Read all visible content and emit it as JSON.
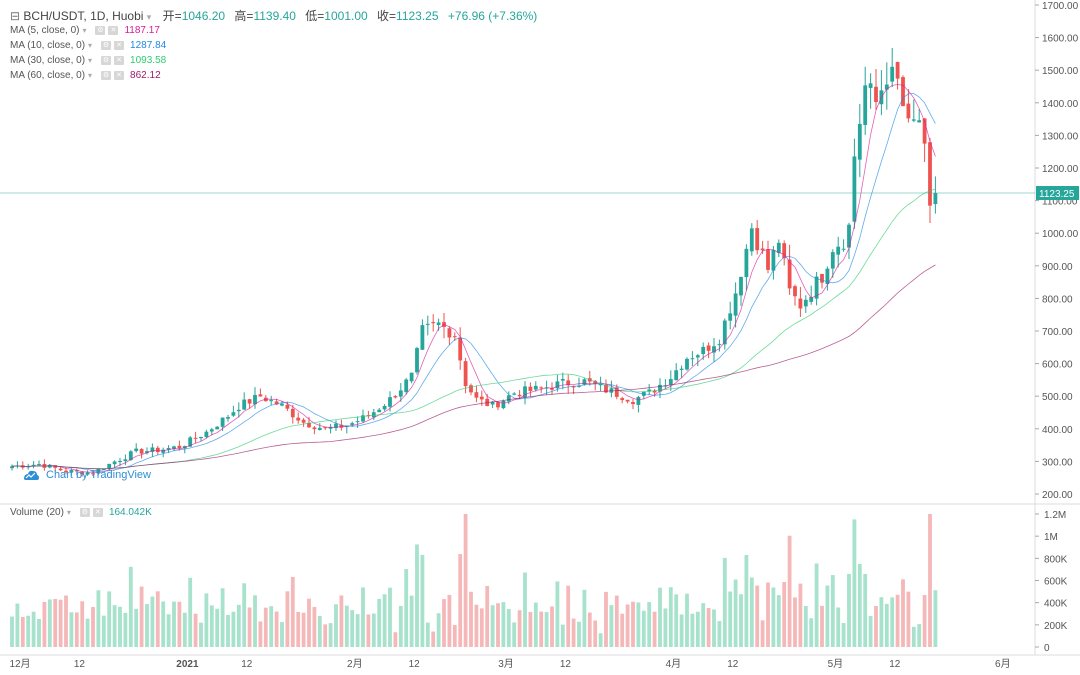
{
  "header": {
    "symbol": "BCH/USDT, 1D, Huobi",
    "open_label": "开=",
    "open": "1046.20",
    "high_label": "高=",
    "high": "1139.40",
    "low_label": "低=",
    "low": "1001.00",
    "close_label": "收=",
    "close": "1123.25",
    "change": "+76.96 (+7.36%)"
  },
  "indicators": [
    {
      "label": "MA (5, close, 0)",
      "value": "1187.17",
      "color": "#d81b9c"
    },
    {
      "label": "MA (10, close, 0)",
      "value": "1287.84",
      "color": "#1e88e5"
    },
    {
      "label": "MA (30, close, 0)",
      "value": "1093.58",
      "color": "#2ecc71"
    },
    {
      "label": "MA (60, close, 0)",
      "value": "862.12",
      "color": "#9c1b6a"
    }
  ],
  "volume_label": "Volume (20)",
  "volume_value": "164.042K",
  "brand": "Chart by TradingView",
  "price_tag": "1123.25",
  "colors": {
    "up": "#26a69a",
    "down": "#ef5350",
    "up_vol": "#a7e2cc",
    "down_vol": "#f5b8b8"
  },
  "chart_data": {
    "type": "candlestick",
    "price_axis": {
      "min": 200,
      "max": 1700,
      "ticks": [
        200,
        300,
        400,
        500,
        600,
        700,
        800,
        900,
        1000,
        1100,
        1200,
        1300,
        1400,
        1500,
        1600,
        1700
      ],
      "tick_labels": [
        "200.00",
        "300.00",
        "400.00",
        "500.00",
        "600.00",
        "700.00",
        "800.00",
        "900.00",
        "1000.00",
        "1100.00",
        "1200.00",
        "1300.00",
        "1400.00",
        "1500.00",
        "1600.00",
        "1700.00"
      ]
    },
    "volume_axis": {
      "min": 0,
      "max": 1200000,
      "ticks": [
        0,
        200000,
        400000,
        600000,
        800000,
        1000000,
        1200000
      ],
      "tick_labels": [
        "0",
        "200K",
        "400K",
        "600K",
        "800K",
        "1M",
        "1.2M"
      ]
    },
    "x_axis_labels": [
      {
        "label": "12月",
        "day": 0
      },
      {
        "label": "12",
        "day": 11
      },
      {
        "label": "2021",
        "day": 31
      },
      {
        "label": "12",
        "day": 42
      },
      {
        "label": "2月",
        "day": 62
      },
      {
        "label": "12",
        "day": 73
      },
      {
        "label": "3月",
        "day": 90
      },
      {
        "label": "12",
        "day": 101
      },
      {
        "label": "4月",
        "day": 121
      },
      {
        "label": "12",
        "day": 132
      },
      {
        "label": "5月",
        "day": 151
      },
      {
        "label": "12",
        "day": 162
      },
      {
        "label": "6月",
        "day": 182
      }
    ],
    "keyframes": [
      [
        0,
        285
      ],
      [
        5,
        292
      ],
      [
        10,
        270
      ],
      [
        15,
        265
      ],
      [
        19,
        300
      ],
      [
        23,
        330
      ],
      [
        27,
        335
      ],
      [
        31,
        345
      ],
      [
        36,
        390
      ],
      [
        40,
        440
      ],
      [
        42,
        470
      ],
      [
        46,
        500
      ],
      [
        50,
        470
      ],
      [
        54,
        420
      ],
      [
        58,
        400
      ],
      [
        62,
        410
      ],
      [
        66,
        440
      ],
      [
        70,
        490
      ],
      [
        74,
        560
      ],
      [
        76,
        700
      ],
      [
        79,
        720
      ],
      [
        82,
        690
      ],
      [
        84,
        540
      ],
      [
        86,
        490
      ],
      [
        89,
        470
      ],
      [
        93,
        510
      ],
      [
        97,
        520
      ],
      [
        102,
        540
      ],
      [
        106,
        545
      ],
      [
        110,
        520
      ],
      [
        115,
        490
      ],
      [
        118,
        510
      ],
      [
        122,
        560
      ],
      [
        125,
        620
      ],
      [
        128,
        640
      ],
      [
        131,
        680
      ],
      [
        134,
        820
      ],
      [
        137,
        1020
      ],
      [
        140,
        890
      ],
      [
        142,
        980
      ],
      [
        144,
        820
      ],
      [
        146,
        780
      ],
      [
        150,
        870
      ],
      [
        152,
        960
      ],
      [
        154,
        980
      ],
      [
        155,
        1020
      ],
      [
        156,
        1240
      ],
      [
        158,
        1450
      ],
      [
        160,
        1400
      ],
      [
        162,
        1490
      ],
      [
        164,
        1460
      ],
      [
        166,
        1320
      ],
      [
        168,
        1350
      ],
      [
        169,
        1240
      ],
      [
        170,
        1060
      ],
      [
        171,
        1123
      ]
    ],
    "ma_values": {
      "ma5": 1187.17,
      "ma10": 1287.84,
      "ma30": 1093.58,
      "ma60": 862.12
    },
    "last_close": 1123.25
  }
}
